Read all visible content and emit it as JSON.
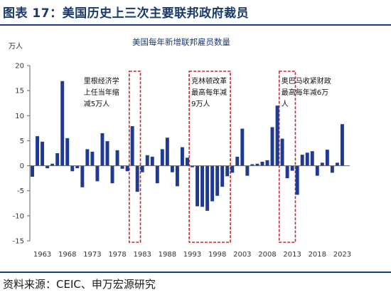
{
  "header": {
    "title": "图表 17：美国历史上三次主要联邦政府裁员"
  },
  "footer": {
    "source": "资料来源：CEIC、申万宏源研究"
  },
  "colors": {
    "bar": "#1f3a93",
    "highlight": "#c8282c",
    "title": "#1a3a6b"
  },
  "chart_data": {
    "type": "bar",
    "title": "美国每年新增联邦雇员数量",
    "ylabel": "万人",
    "xlabel": "",
    "ylim": [
      -15,
      20
    ],
    "yticks": [
      -15,
      -10,
      -5,
      0,
      5,
      10,
      15,
      20
    ],
    "xticks": [
      1963,
      1968,
      1973,
      1978,
      1983,
      1988,
      1993,
      1998,
      2003,
      2008,
      2013,
      2018,
      2023
    ],
    "grid": false,
    "legend": "none",
    "categories": [
      1961,
      1962,
      1963,
      1964,
      1965,
      1966,
      1967,
      1968,
      1969,
      1970,
      1971,
      1972,
      1973,
      1974,
      1975,
      1976,
      1977,
      1978,
      1979,
      1980,
      1981,
      1982,
      1983,
      1984,
      1985,
      1986,
      1987,
      1988,
      1989,
      1990,
      1991,
      1992,
      1993,
      1994,
      1995,
      1996,
      1997,
      1998,
      1999,
      2000,
      2001,
      2002,
      2003,
      2004,
      2005,
      2006,
      2007,
      2008,
      2009,
      2010,
      2011,
      2012,
      2013,
      2014,
      2015,
      2016,
      2017,
      2018,
      2019,
      2020,
      2021,
      2022,
      2023,
      2024
    ],
    "values": [
      -2.2,
      5.9,
      4.8,
      -0.5,
      0.4,
      2.5,
      16.9,
      5.5,
      -1.1,
      -0.5,
      -4.3,
      3.3,
      2.8,
      -3.1,
      6.5,
      4.9,
      -3.5,
      3.1,
      -0.6,
      -1.1,
      7.9,
      -5.2,
      -1.3,
      2.1,
      1.8,
      -3.5,
      3.3,
      5.6,
      -1.3,
      -4.1,
      3.7,
      1.6,
      -0.3,
      -8.1,
      -8.2,
      -9.0,
      -7.1,
      -6.0,
      -4.2,
      -2.1,
      -1.4,
      1.8,
      7.4,
      -2.0,
      0.3,
      0.4,
      0.8,
      1.1,
      7.7,
      12.0,
      5.4,
      -2.5,
      -1.0,
      -5.8,
      2.2,
      2.6,
      2.9,
      -2.0,
      0.6,
      3.2,
      -1.4,
      0.6,
      8.3,
      0.0
    ],
    "annotations": [
      {
        "lines": [
          "里根经济学",
          "上任当年缩",
          "减5万人"
        ],
        "from": 1981,
        "to": 1982
      },
      {
        "lines": [
          "克林顿改革",
          "最高每年减",
          "9万人"
        ],
        "from": 1993,
        "to": 2000
      },
      {
        "lines": [
          "奥巴马收紧财政",
          "最高每年减6万",
          "人"
        ],
        "from": 2011,
        "to": 2013
      }
    ]
  }
}
